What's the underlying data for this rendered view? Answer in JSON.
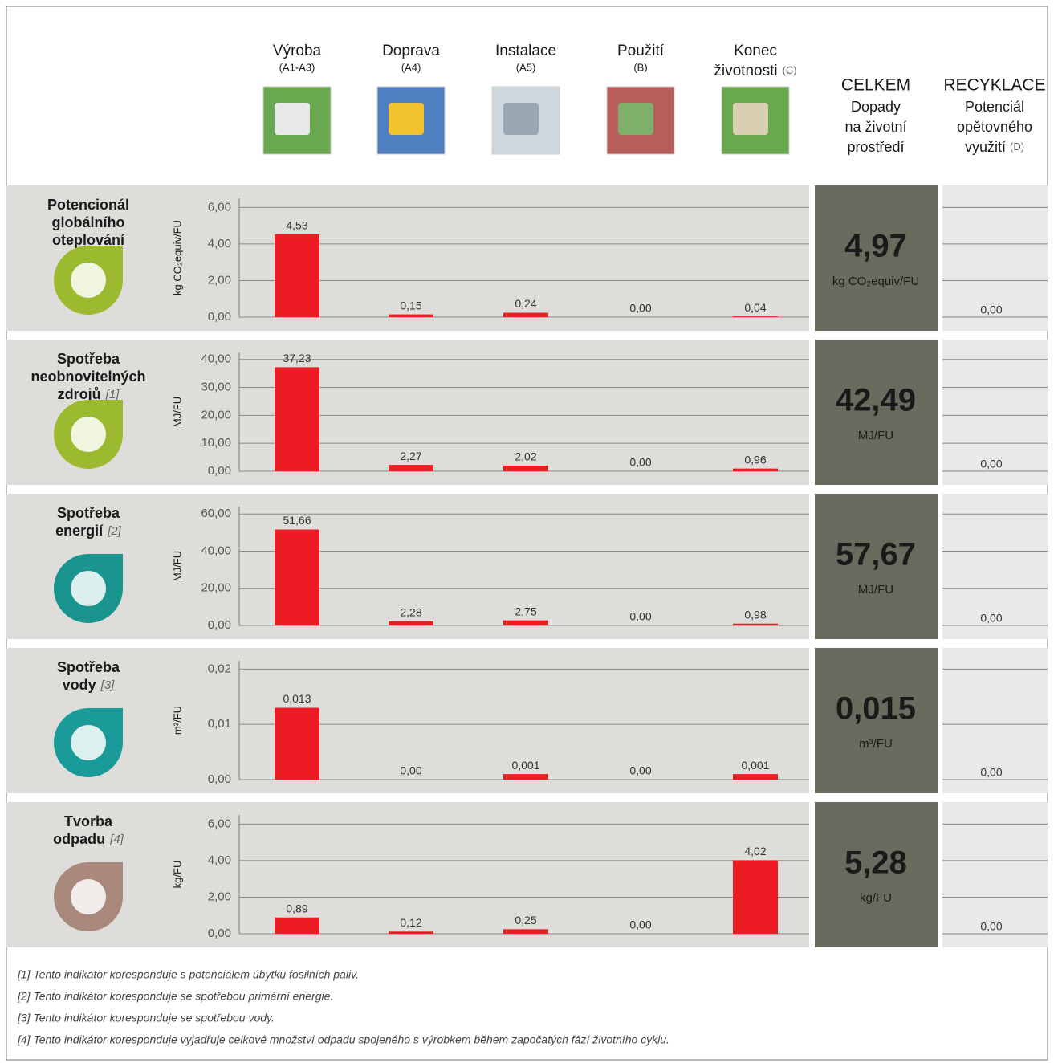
{
  "header": {
    "stages": [
      {
        "name": [
          "Výroba"
        ],
        "code": "(A1-A3)"
      },
      {
        "name": [
          "Doprava"
        ],
        "code": "(A4)"
      },
      {
        "name": [
          "Instalace"
        ],
        "code": "(A5)"
      },
      {
        "name": [
          "Použití"
        ],
        "code": "(B)"
      },
      {
        "name": [
          "Konec",
          "životnosti"
        ],
        "code": "(C)"
      }
    ],
    "total": {
      "title": "CELKEM",
      "lines": [
        "Dopady",
        "na životní",
        "prostředí"
      ]
    },
    "recycling": {
      "title": "RECYKLACE",
      "lines": [
        "Potenciál",
        "opětovného",
        "využití"
      ],
      "code": "(D)"
    }
  },
  "chart_data": [
    {
      "type": "bar",
      "title": [
        "Potencionál",
        "globálního",
        "oteplování"
      ],
      "y_label": "kg CO₂equiv/FU",
      "values": [
        4.53,
        0.15,
        0.24,
        0,
        0.04
      ],
      "value_labels": [
        "4,53",
        "0,15",
        "0,24",
        "0,00",
        "0,04"
      ],
      "color": "#ed1c24",
      "ylim": [
        0,
        6.5
      ],
      "yticks": [
        {
          "value": 0,
          "label": "0,00"
        },
        {
          "value": 2,
          "label": "2,00"
        },
        {
          "value": 4,
          "label": "4,00"
        },
        {
          "value": 6,
          "label": "6,00"
        }
      ],
      "total": 4.97,
      "total_label": "4,97",
      "total_unit": "kg CO₂equiv/FU",
      "recycling": 0,
      "recycling_label": "0,00",
      "icon_color": "#9cba2f"
    },
    {
      "type": "bar",
      "title": [
        "Spotřeba",
        "neobnovitelných",
        "zdrojů"
      ],
      "title_note": "[1]",
      "y_label": "MJ/FU",
      "values": [
        37.23,
        2.27,
        2.02,
        0,
        0.96
      ],
      "value_labels": [
        "37,23",
        "2,27",
        "2,02",
        "0,00",
        "0,96"
      ],
      "color": "#ed1c24",
      "ylim": [
        0,
        42.5
      ],
      "yticks": [
        {
          "value": 0,
          "label": "0,00"
        },
        {
          "value": 10,
          "label": "10,00"
        },
        {
          "value": 20,
          "label": "20,00"
        },
        {
          "value": 30,
          "label": "30,00"
        },
        {
          "value": 40,
          "label": "40,00"
        }
      ],
      "total": 42.49,
      "total_label": "42,49",
      "total_unit": "MJ/FU",
      "recycling": 0,
      "recycling_label": "0,00",
      "icon_color": "#9cba2f"
    },
    {
      "type": "bar",
      "title": [
        "Spotřeba",
        "energií"
      ],
      "title_note": "[2]",
      "y_label": "MJ/FU",
      "values": [
        51.66,
        2.28,
        2.75,
        0,
        0.98
      ],
      "value_labels": [
        "51,66",
        "2,28",
        "2,75",
        "0,00",
        "0,98"
      ],
      "color": "#ed1c24",
      "ylim": [
        0,
        64
      ],
      "yticks": [
        {
          "value": 0,
          "label": "0,00"
        },
        {
          "value": 20,
          "label": "20,00"
        },
        {
          "value": 40,
          "label": "40,00"
        },
        {
          "value": 60,
          "label": "60,00"
        }
      ],
      "total": 57.67,
      "total_label": "57,67",
      "total_unit": "MJ/FU",
      "recycling": 0,
      "recycling_label": "0,00",
      "icon_color": "#1a948e"
    },
    {
      "type": "bar",
      "title": [
        "Spotřeba",
        "vody"
      ],
      "title_note": "[3]",
      "y_label": "m³/FU",
      "values": [
        0.013,
        0,
        0.001,
        0,
        0.001
      ],
      "value_labels": [
        "0,013",
        "0,00",
        "0,001",
        "0,00",
        "0,001"
      ],
      "color": "#ed1c24",
      "ylim": [
        0,
        0.0215
      ],
      "yticks": [
        {
          "value": 0,
          "label": "0,00"
        },
        {
          "value": 0.01,
          "label": "0,01"
        },
        {
          "value": 0.02,
          "label": "0,02"
        }
      ],
      "total": 0.015,
      "total_label": "0,015",
      "total_unit": "m³/FU",
      "recycling": 0,
      "recycling_label": "0,00",
      "icon_color": "#1a9b9a"
    },
    {
      "type": "bar",
      "title": [
        "Tvorba",
        "odpadu"
      ],
      "title_note": "[4]",
      "y_label": "kg/FU",
      "values": [
        0.89,
        0.12,
        0.25,
        0,
        4.02
      ],
      "value_labels": [
        "0,89",
        "0,12",
        "0,25",
        "0,00",
        "4,02"
      ],
      "color": "#ed1c24",
      "ylim": [
        0,
        6.5
      ],
      "yticks": [
        {
          "value": 0,
          "label": "0,00"
        },
        {
          "value": 2,
          "label": "2,00"
        },
        {
          "value": 4,
          "label": "4,00"
        },
        {
          "value": 6,
          "label": "6,00"
        }
      ],
      "total": 5.28,
      "total_label": "5,28",
      "total_unit": "kg/FU",
      "recycling": 0,
      "recycling_label": "0,00",
      "icon_color": "#a8897c"
    }
  ],
  "footnotes": [
    "[1]  Tento indikátor koresponduje s potenciálem úbytku fosilních paliv.",
    "[2]  Tento indikátor koresponduje se spotřebou primární energie.",
    "[3]  Tento indikátor koresponduje se spotřebou vody.",
    "[4]  Tento indikátor koresponduje vyjadřuje celkové množství odpadu spojeného s výrobkem během započatých fází životního cyklu."
  ]
}
